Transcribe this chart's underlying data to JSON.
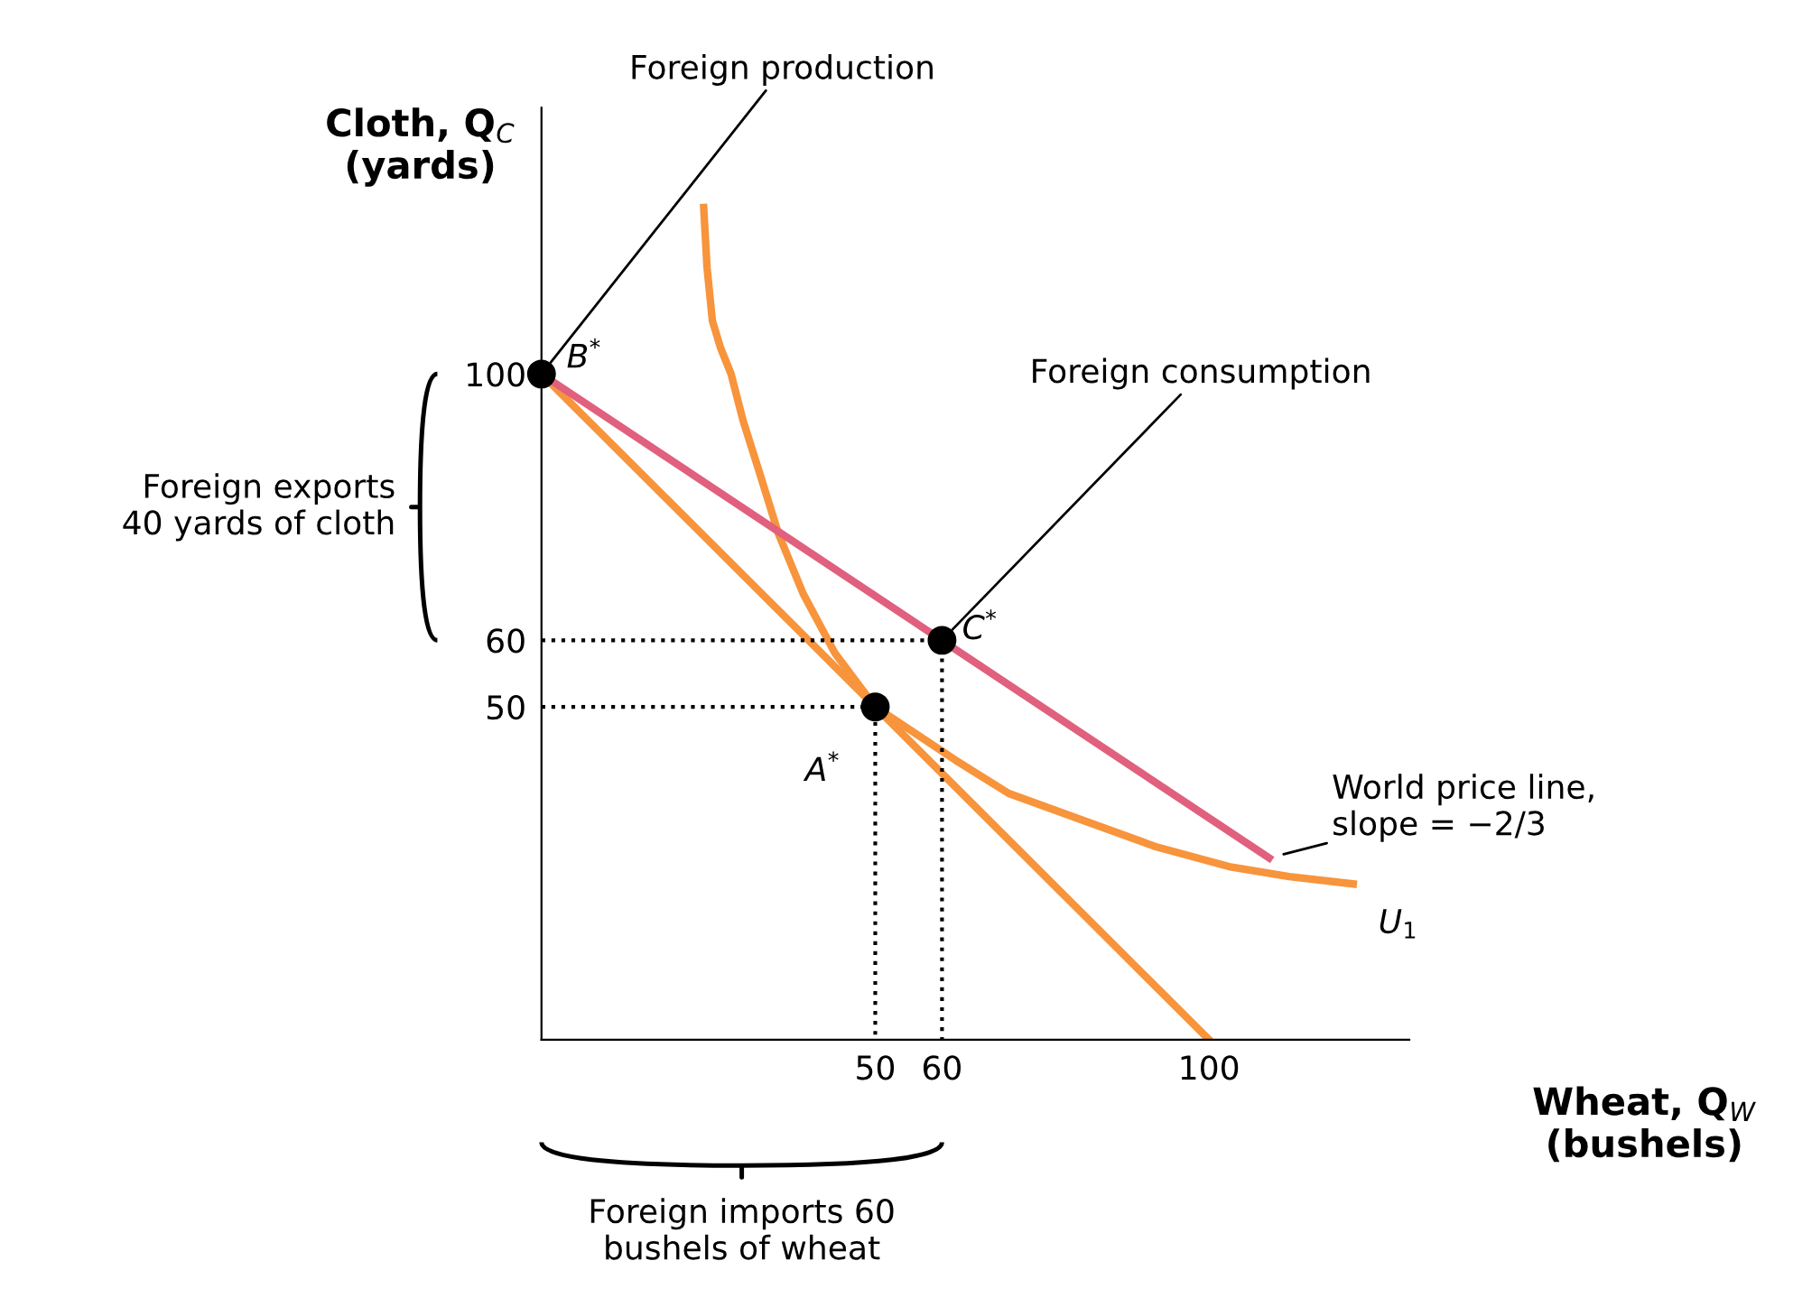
{
  "chart_data": {
    "type": "line",
    "xlabel": "Wheat, Q$_{W}$\n(bushels)",
    "ylabel": "Cloth, Q$_{C}$\n(yards)",
    "xlim": [
      0,
      130
    ],
    "ylim": [
      0,
      140
    ],
    "xticks": [
      50,
      60,
      100
    ],
    "yticks": [
      50,
      60,
      100
    ],
    "grid": false,
    "series": [
      {
        "color": "#f7943c",
        "line_style": "solid",
        "x": [
          0,
          100
        ],
        "values": [
          100,
          0
        ]
      },
      {
        "color": "#f7943c",
        "line_style": "solid",
        "x": [
          24.3,
          24.8,
          25.6,
          26.8,
          28.4,
          30.2,
          32.4,
          35.5,
          39.2,
          44,
          50,
          56,
          62,
          70,
          81,
          92,
          103,
          112,
          121.6
        ],
        "values": [
          125,
          116,
          108,
          104,
          100,
          93,
          86,
          76,
          67,
          58,
          50,
          46,
          42,
          37,
          33,
          29,
          26,
          24.5,
          23.4
        ]
      },
      {
        "color": "#e0607e",
        "line_style": "solid",
        "x": [
          0,
          109
        ],
        "values": [
          100,
          27.3
        ]
      },
      {
        "color": "#000000",
        "line_style": "dotted",
        "x": [
          0,
          60,
          60
        ],
        "values": [
          60,
          60,
          0
        ]
      },
      {
        "color": "#000000",
        "line_style": "dotted",
        "x": [
          0,
          50,
          50
        ],
        "values": [
          50,
          50,
          0
        ]
      },
      {
        "type": "scatter",
        "color": "#000000",
        "marker": "circle",
        "x": [
          0,
          60,
          50
        ],
        "values": [
          100,
          60,
          50
        ]
      }
    ],
    "annotations": [
      "Foreign exports\n40 yards of cloth",
      "Foreign imports 60\nbushels of wheat",
      {
        "text": "Foreign production",
        "x": 0,
        "y": 100
      },
      {
        "text": "B$^{*}$",
        "x": 0,
        "y": 100
      },
      {
        "text": "Foreign consumption",
        "x": 60,
        "y": 60
      },
      {
        "text": "C$^{*}$",
        "x": 60,
        "y": 60
      },
      {
        "text": "A$^{*}$",
        "x": 50,
        "y": 50
      },
      {
        "text": "World price line,\nslope = −2/3",
        "x": 109,
        "y": 27.3
      },
      {
        "text": "U$_{1}$",
        "x": 121.6,
        "y": 23.4
      }
    ]
  }
}
